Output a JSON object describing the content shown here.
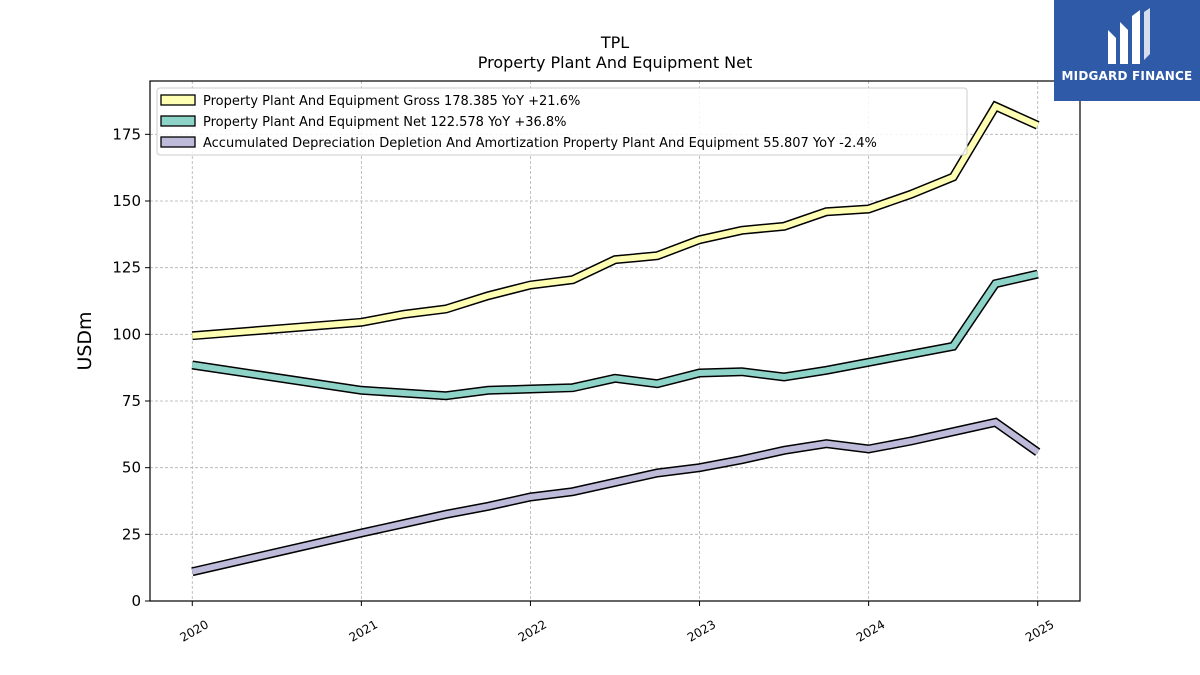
{
  "chart_data": {
    "type": "line",
    "title": "TPL",
    "subtitle": "Property Plant And Equipment Net",
    "ylabel": "USDm",
    "xlabel": "",
    "ylim": [
      0,
      195
    ],
    "xlim": [
      2019.75,
      2025.25
    ],
    "yticks": [
      0,
      25,
      50,
      75,
      100,
      125,
      150,
      175
    ],
    "xticks": [
      "2020",
      "2021",
      "2022",
      "2023",
      "2024",
      "2025"
    ],
    "grid": true,
    "legend_position": "top-left",
    "series": [
      {
        "name": "Property Plant And Equipment Gross  178.385 YoY +21.6%",
        "color": "#ffffb3",
        "x": [
          2020.0,
          2021.0,
          2021.25,
          2021.5,
          2021.75,
          2022.0,
          2022.25,
          2022.5,
          2022.75,
          2023.0,
          2023.25,
          2023.5,
          2023.75,
          2024.0,
          2024.25,
          2024.5,
          2024.75,
          2025.0
        ],
        "y": [
          99.5,
          104.5,
          107.5,
          109.5,
          114.5,
          118.5,
          120.5,
          128,
          129.5,
          135.5,
          139,
          140.5,
          146,
          147,
          152.5,
          159,
          185.5,
          178.4
        ]
      },
      {
        "name": "Property Plant And Equipment Net  122.578 YoY +36.8%",
        "color": "#8dd3c7",
        "x": [
          2020.0,
          2021.0,
          2021.25,
          2021.5,
          2021.75,
          2022.0,
          2022.25,
          2022.5,
          2022.75,
          2023.0,
          2023.25,
          2023.5,
          2023.75,
          2024.0,
          2024.25,
          2024.5,
          2024.75,
          2025.0
        ],
        "y": [
          88.5,
          79,
          78,
          77,
          79,
          79.5,
          80,
          83.5,
          81.5,
          85.5,
          86,
          84,
          86.5,
          89.5,
          92.5,
          95.5,
          119,
          122.6
        ]
      },
      {
        "name": "Accumulated Depreciation Depletion And Amortization Property Plant And Equipment  55.807 YoY -2.4%",
        "color": "#bebada",
        "x": [
          2020.0,
          2021.0,
          2021.25,
          2021.5,
          2021.75,
          2022.0,
          2022.25,
          2022.5,
          2022.75,
          2023.0,
          2023.25,
          2023.5,
          2023.75,
          2024.0,
          2024.25,
          2024.5,
          2024.75,
          2025.0
        ],
        "y": [
          11,
          25.5,
          29,
          32.5,
          35.5,
          39,
          41,
          44.5,
          48,
          50,
          53,
          56.5,
          59,
          57,
          60,
          63.5,
          67,
          55.8
        ]
      }
    ]
  },
  "logo": {
    "text": "MIDGARD FINANCE",
    "background": "#2f5aa8"
  }
}
